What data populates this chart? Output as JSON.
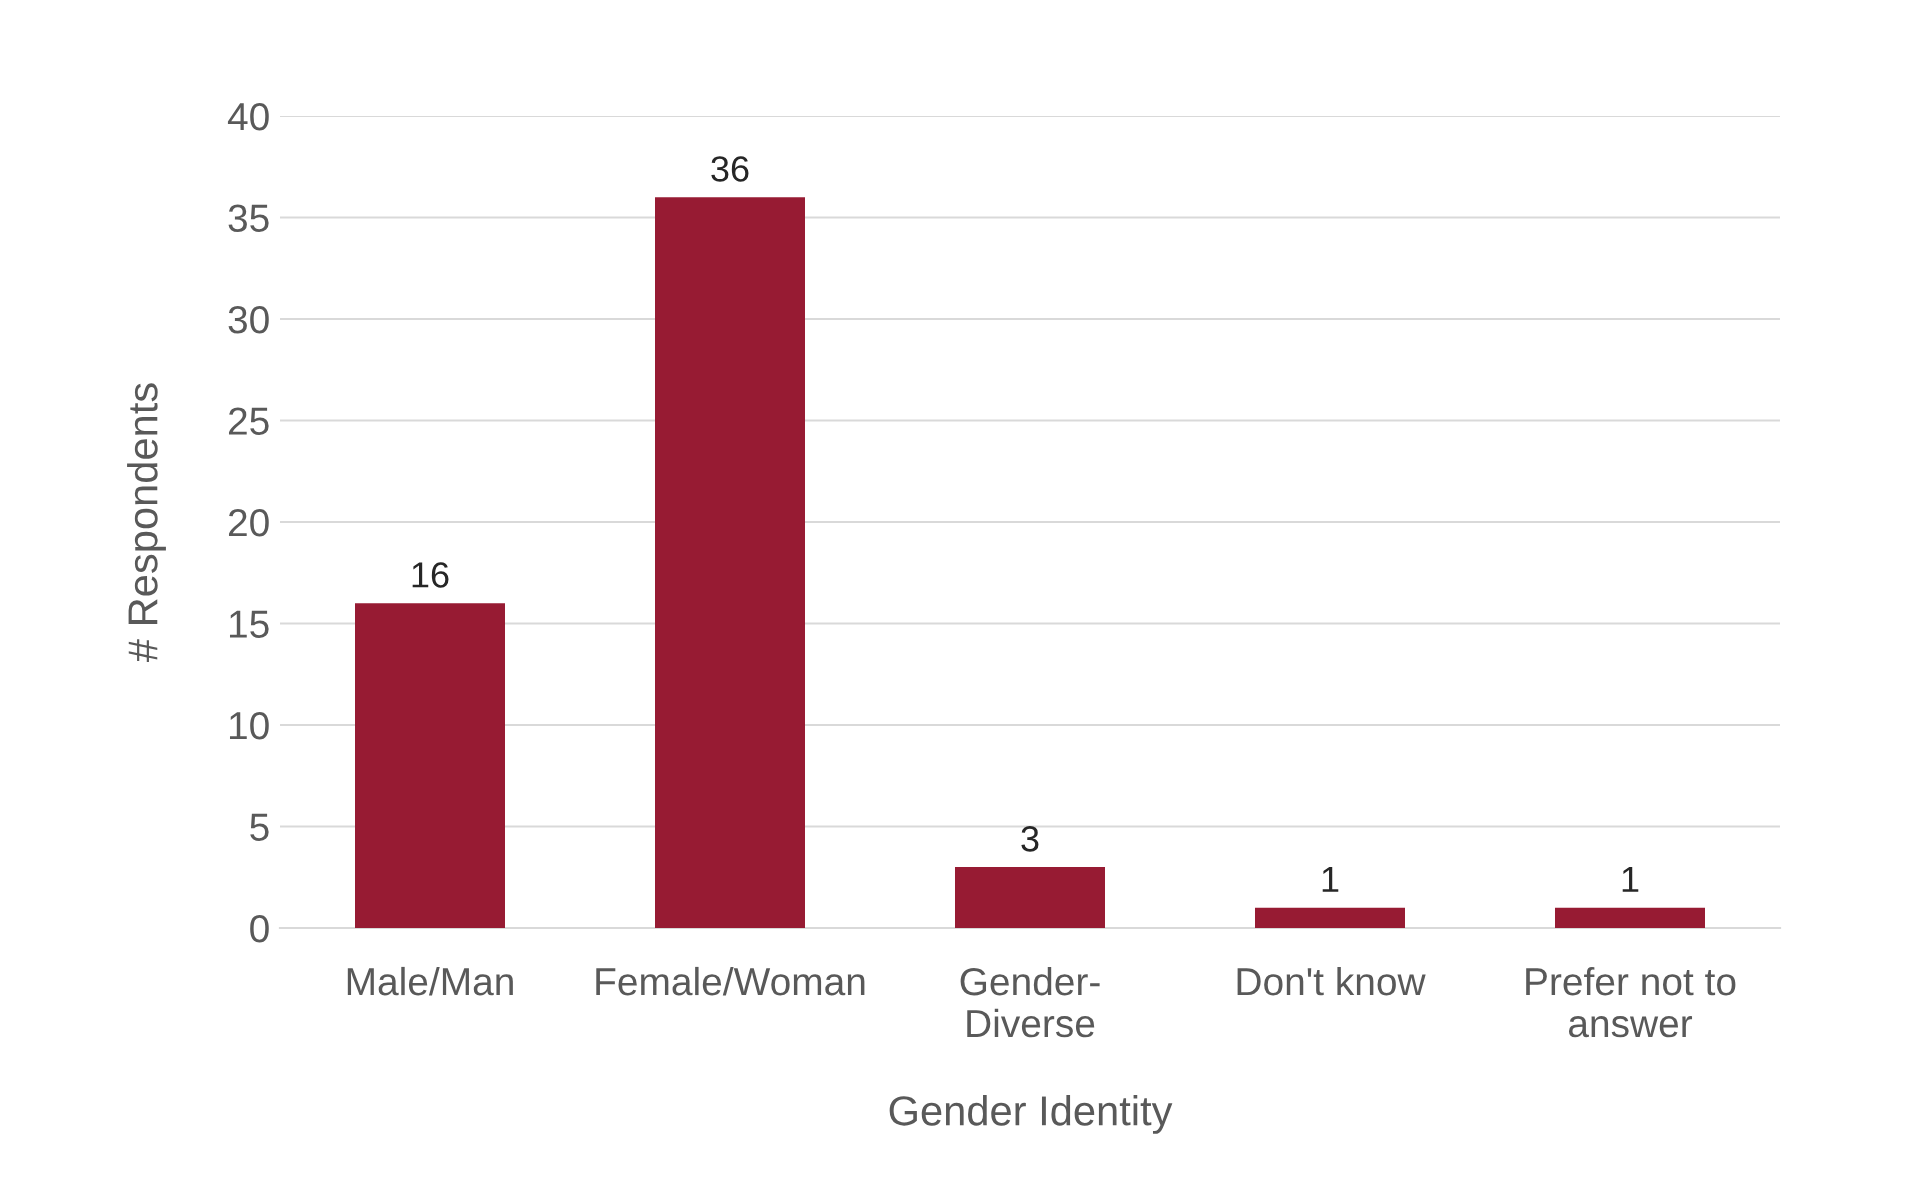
{
  "chart_data": {
    "type": "bar",
    "xlabel": "Gender Identity",
    "ylabel": "# Respondents",
    "categories": [
      "Male/Man",
      "Female/Woman",
      "Gender-\nDiverse",
      "Don't know",
      "Prefer not to\nanswer"
    ],
    "values": [
      16,
      36,
      3,
      1,
      1
    ],
    "color": "#971b33",
    "ylim": [
      0,
      40
    ],
    "yticks": [
      0,
      5,
      10,
      15,
      20,
      25,
      30,
      35,
      40
    ],
    "grid": "y",
    "data_labels": true
  }
}
